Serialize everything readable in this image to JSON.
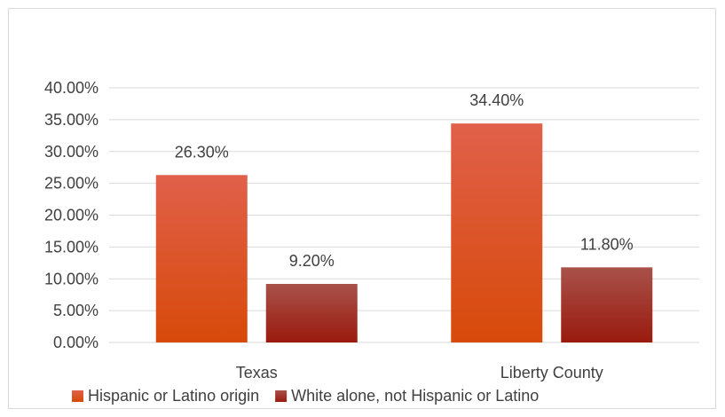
{
  "chart_data": {
    "type": "bar",
    "categories": [
      "Texas",
      "Liberty County"
    ],
    "series": [
      {
        "name": "Hispanic or Latino origin",
        "values": [
          26.3,
          34.4
        ],
        "color_top": "#e0604a",
        "color_bottom": "#d84a0a"
      },
      {
        "name": "White alone, not Hispanic or Latino",
        "values": [
          9.2,
          11.8
        ],
        "color_top": "#a8524a",
        "color_bottom": "#9a1a0e"
      }
    ],
    "data_labels": [
      [
        "26.30%",
        "34.40%"
      ],
      [
        "9.20%",
        "11.80%"
      ]
    ],
    "y_ticks": [
      "0.00%",
      "5.00%",
      "10.00%",
      "15.00%",
      "20.00%",
      "25.00%",
      "30.00%",
      "35.00%",
      "40.00%"
    ],
    "ylim": [
      0,
      40
    ],
    "grid": true,
    "legend": "bottom"
  }
}
